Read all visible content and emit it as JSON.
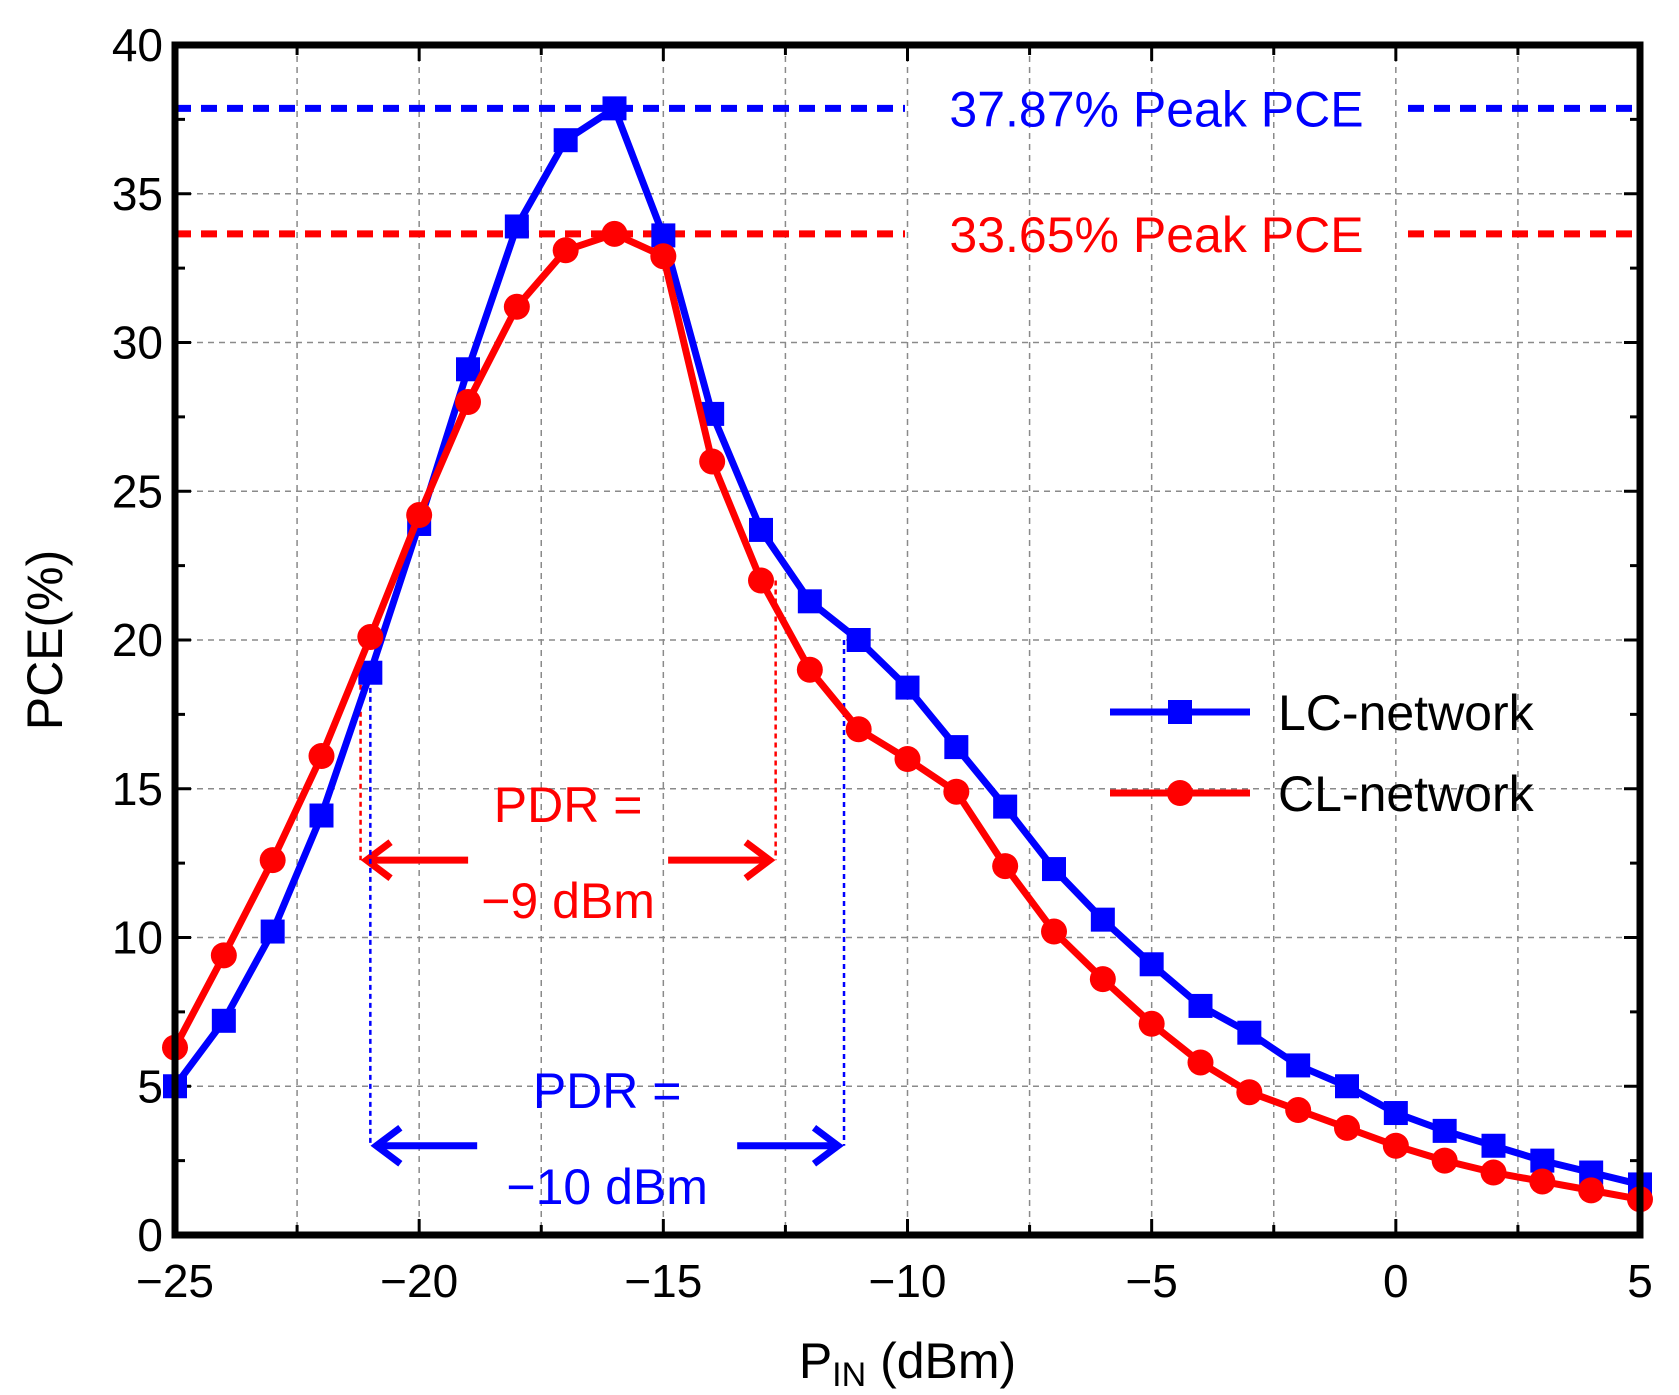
{
  "chart_data": {
    "type": "line",
    "title": "",
    "xlabel": {
      "main": "P",
      "subscript": "IN",
      "unit": " (dBm)"
    },
    "ylabel": "PCE(%)",
    "xlim": [
      -25,
      5
    ],
    "ylim": [
      0,
      40
    ],
    "xticks": [
      -25,
      -20,
      -15,
      -10,
      -5,
      0,
      5
    ],
    "xtick_labels": [
      "−25",
      "−20",
      "−15",
      "−10",
      "−5",
      "0",
      "5"
    ],
    "yticks": [
      0,
      5,
      10,
      15,
      20,
      25,
      30,
      35,
      40
    ],
    "ytick_labels": [
      "0",
      "5",
      "10",
      "15",
      "20",
      "25",
      "30",
      "35",
      "40"
    ],
    "grid": true,
    "legend_position": "right",
    "series": [
      {
        "name": "LC-network",
        "color": "#0000ff",
        "marker": "square",
        "x": [
          -25,
          -24,
          -23,
          -22,
          -21,
          -20,
          -19,
          -18,
          -17,
          -16,
          -15,
          -14,
          -13,
          -12,
          -11,
          -10,
          -9,
          -8,
          -7,
          -6,
          -5,
          -4,
          -3,
          -2,
          -1,
          0,
          1,
          2,
          3,
          4,
          5
        ],
        "values": [
          5.0,
          7.2,
          10.2,
          14.1,
          18.9,
          23.9,
          29.1,
          33.9,
          36.8,
          37.87,
          33.6,
          27.6,
          23.7,
          21.3,
          20.0,
          18.4,
          16.4,
          14.4,
          12.3,
          10.6,
          9.1,
          7.7,
          6.8,
          5.7,
          5.0,
          4.1,
          3.5,
          3.0,
          2.5,
          2.1,
          1.7
        ]
      },
      {
        "name": "CL-network",
        "color": "#ff0000",
        "marker": "circle",
        "x": [
          -25,
          -24,
          -23,
          -22,
          -21,
          -20,
          -19,
          -18,
          -17,
          -16,
          -15,
          -14,
          -13,
          -12,
          -11,
          -10,
          -9,
          -8,
          -7,
          -6,
          -5,
          -4,
          -3,
          -2,
          -1,
          0,
          1,
          2,
          3,
          4,
          5
        ],
        "values": [
          6.3,
          9.4,
          12.6,
          16.1,
          20.1,
          24.2,
          28.0,
          31.2,
          33.1,
          33.65,
          32.9,
          26.0,
          22.0,
          19.0,
          17.0,
          16.0,
          14.9,
          12.4,
          10.2,
          8.6,
          7.1,
          5.8,
          4.8,
          4.2,
          3.6,
          3.0,
          2.5,
          2.1,
          1.8,
          1.5,
          1.2
        ]
      }
    ],
    "peak_lines": [
      {
        "series": "LC-network",
        "y": 37.87,
        "label": "37.87% Peak PCE",
        "color": "#0000ff"
      },
      {
        "series": "CL-network",
        "y": 33.65,
        "label": "33.65% Peak PCE",
        "color": "#ff0000"
      }
    ],
    "pdr_annotations": [
      {
        "series": "CL-network",
        "color": "#ff0000",
        "x_start": -21.2,
        "x_end": -12.7,
        "y_drop": 19.1,
        "y_arrow": 12.6,
        "line1": "PDR =",
        "line2": "−9 dBm"
      },
      {
        "series": "LC-network",
        "color": "#0000ff",
        "x_start": -21.0,
        "x_end": -11.3,
        "y_drop": 19.3,
        "y_arrow": 3.0,
        "line1": "PDR =",
        "line2": "−10 dBm"
      }
    ]
  }
}
